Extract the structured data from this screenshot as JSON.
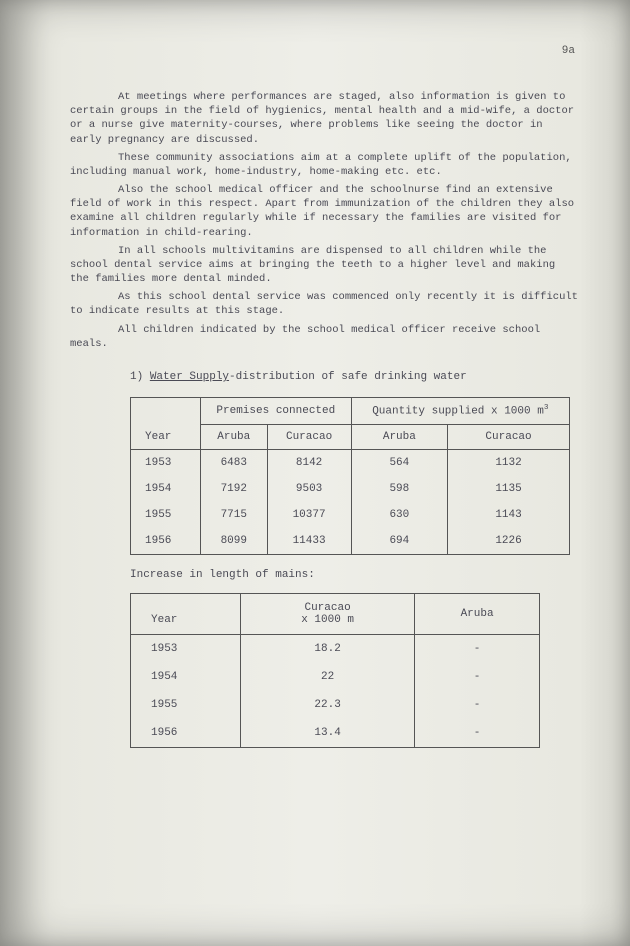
{
  "page_number": "9a",
  "paragraphs": {
    "p1": "At meetings where performances are staged, also information is given to certain groups in the field of hygienics, mental health and a mid-wife, a doctor or a nurse give maternity-courses, where problems like seeing the doctor in early pregnancy are discussed.",
    "p2": "These community associations aim at a complete uplift of the population, including manual work, home-industry, home-making etc. etc.",
    "p3": "Also the school medical officer and the schoolnurse find an extensive field of work in this respect. Apart from immunization of the children they also examine all children regularly while if necessary the families are visited for information in child-rearing.",
    "p4": "In all schools multivitamins are dispensed to all children while the school dental service aims at bringing the teeth to a higher level and making the families more dental minded.",
    "p5": "As this school dental service was commenced only recently it is difficult to indicate results at this stage.",
    "p6": "All children indicated by the school medical officer receive school meals."
  },
  "section": {
    "prefix": "1) ",
    "underlined": "Water Supply",
    "suffix": "-distribution of safe drinking water"
  },
  "table1": {
    "type": "table",
    "columns": {
      "year": "Year",
      "group1": "Premises connected",
      "group2_a": "Quantity supplied x 1000 m",
      "group2_sup": "3",
      "sub_aruba": "Aruba",
      "sub_curacao": "Curacao"
    },
    "rows": [
      {
        "year": "1953",
        "pa": "6483",
        "pc": "8142",
        "qa": "564",
        "qc": "1132"
      },
      {
        "year": "1954",
        "pa": "7192",
        "pc": "9503",
        "qa": "598",
        "qc": "1135"
      },
      {
        "year": "1955",
        "pa": "7715",
        "pc": "10377",
        "qa": "630",
        "qc": "1143"
      },
      {
        "year": "1956",
        "pa": "8099",
        "pc": "11433",
        "qa": "694",
        "qc": "1226"
      }
    ],
    "border_color": "#555555",
    "text_color": "#4a4a55",
    "fontsize": 11
  },
  "caption2": "Increase in length of mains:",
  "table2": {
    "type": "table",
    "columns": {
      "year": "Year",
      "curacao_a": "Curacao",
      "curacao_b": "x 1000 m",
      "aruba": "Aruba"
    },
    "rows": [
      {
        "year": "1953",
        "c": "18.2",
        "a": "-"
      },
      {
        "year": "1954",
        "c": "22",
        "a": "-"
      },
      {
        "year": "1955",
        "c": "22.3",
        "a": "-"
      },
      {
        "year": "1956",
        "c": "13.4",
        "a": "-"
      }
    ],
    "border_color": "#555555",
    "text_color": "#4a4a55",
    "fontsize": 11
  },
  "colors": {
    "page_bg": "#eeeee8",
    "text": "#4a4a55",
    "border": "#555555"
  }
}
